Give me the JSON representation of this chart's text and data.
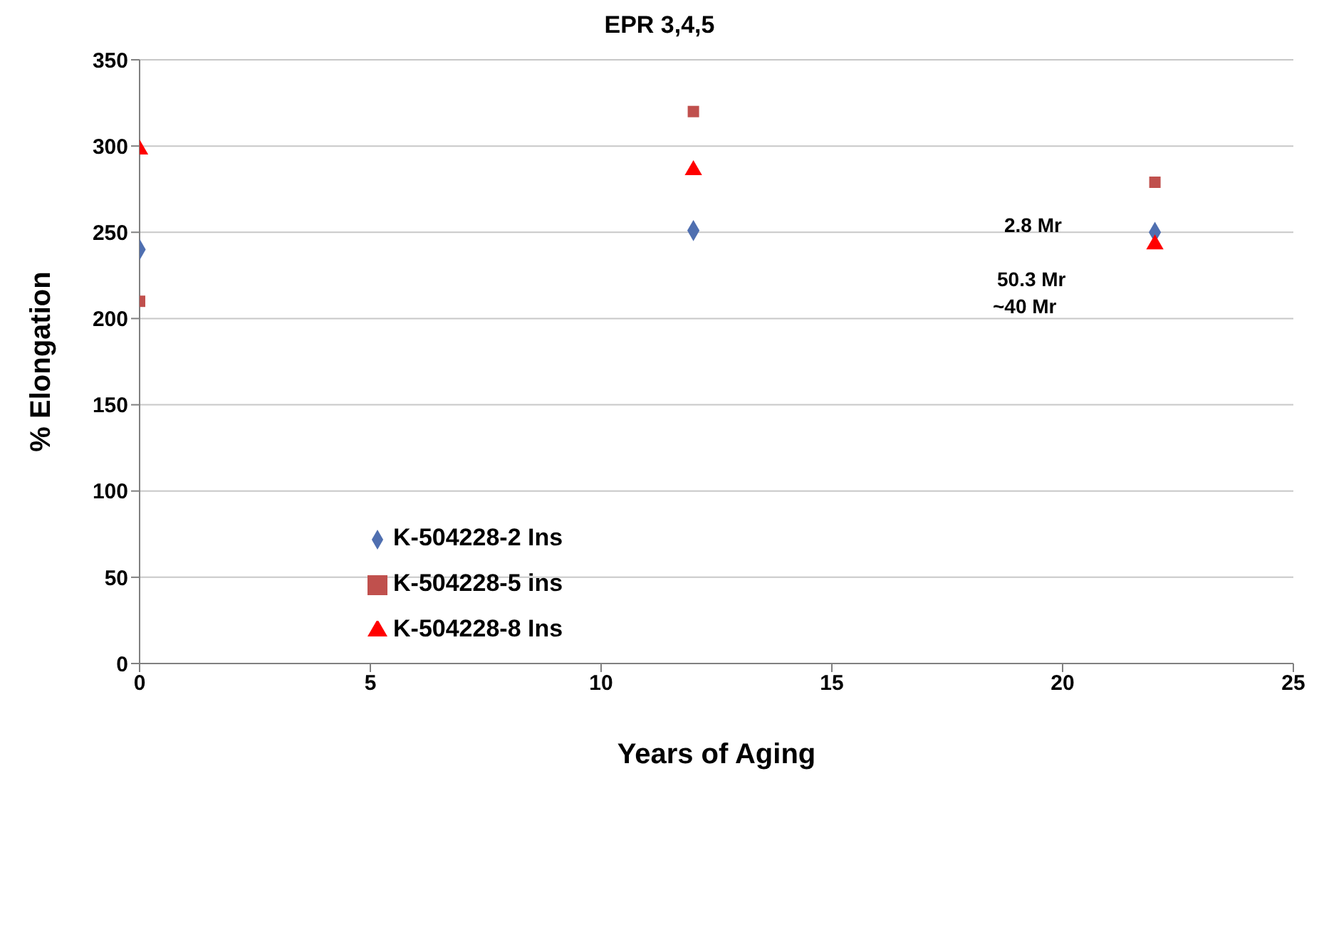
{
  "chart_data": {
    "type": "scatter",
    "title": "EPR 3,4,5",
    "xlabel": "Years of Aging",
    "ylabel": "% Elongation",
    "xlim": [
      0,
      25
    ],
    "xticks": [
      0,
      5,
      10,
      15,
      20,
      25
    ],
    "ylim": [
      0,
      350
    ],
    "yticks": [
      0,
      50,
      100,
      150,
      200,
      250,
      300,
      350
    ],
    "grid": "y",
    "legend": "left",
    "series": [
      {
        "name": "K-504228-2 Ins",
        "color": "#4f6fb0",
        "marker": "diamond",
        "x": [
          0,
          12,
          22
        ],
        "values": [
          240,
          251,
          250
        ]
      },
      {
        "name": "K-504228-5 ins",
        "color": "#c0504d",
        "marker": "square",
        "x": [
          0,
          12,
          22
        ],
        "values": [
          210,
          320,
          279
        ]
      },
      {
        "name": "K-504228-8 Ins",
        "color": "#ff0000",
        "marker": "triangle",
        "x": [
          0,
          12,
          22
        ],
        "values": [
          298,
          286,
          243
        ]
      }
    ],
    "annotations": [
      "2.8 Mr",
      "50.3 Mr",
      "~40 Mr"
    ]
  }
}
